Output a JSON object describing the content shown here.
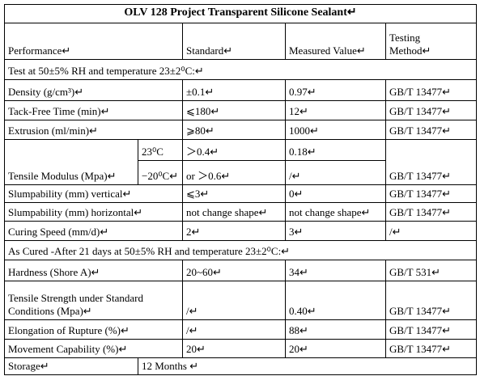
{
  "title": "OLV 128 Project Transparent Silicone Sealant↵",
  "header": [
    "Performance↵",
    "Standard↵",
    "Measured Value↵",
    "Testing Method↵"
  ],
  "section_1": "Test at 50±5% RH and temperature 23±2⁰C:↵",
  "rows_1": [
    [
      "Density (g/cm³)↵",
      "±0.1↵",
      "0.97↵",
      "GB/T 13477↵"
    ],
    [
      "Tack-Free Time (min)↵",
      "⩽180↵",
      "12↵",
      "GB/T 13477↵"
    ],
    [
      "Extrusion (ml/min)↵",
      "⩾80↵",
      "1000↵",
      "GB/T 13477↵"
    ]
  ],
  "tensile_modulus": {
    "label": "Tensile Modulus (Mpa)↵",
    "conditions": [
      {
        "temperature": "23⁰C",
        "standard": "＞0.4↵",
        "measured": "0.18↵"
      },
      {
        "temperature": "−20⁰C↵",
        "standard": "or ＞0.6↵",
        "measured": "/↵"
      }
    ],
    "method": "GB/T 13477↵"
  },
  "rows_2": [
    [
      "Slumpability (mm) vertical↵",
      "⩽3↵",
      "0↵",
      "GB/T 13477↵"
    ],
    [
      "Slumpability (mm) horizontal↵",
      "not change shape↵",
      "not change shape↵",
      "GB/T 13477↵"
    ],
    [
      "Curing Speed (mm/d)↵",
      "2↵",
      "3↵",
      "/↵"
    ]
  ],
  "section_2": "As Cured -After 21 days at 50±5% RH and temperature 23±2⁰C:↵",
  "rows_3": [
    [
      "Hardness (Shore A)↵",
      "20~60↵",
      "34↵",
      "GB/T 531↵"
    ],
    [
      "Tensile Strength under Standard Conditions (Mpa)↵",
      "/↵",
      "0.40↵",
      "GB/T 13477↵"
    ],
    [
      "Elongation of Rupture (%)↵",
      "/↵",
      "88↵",
      "GB/T 13477↵"
    ],
    [
      "Movement Capability (%)↵",
      "20↵",
      "20↵",
      "GB/T 13477↵"
    ]
  ],
  "storage": {
    "label": "Storage↵",
    "value": "12 Months ↵"
  }
}
